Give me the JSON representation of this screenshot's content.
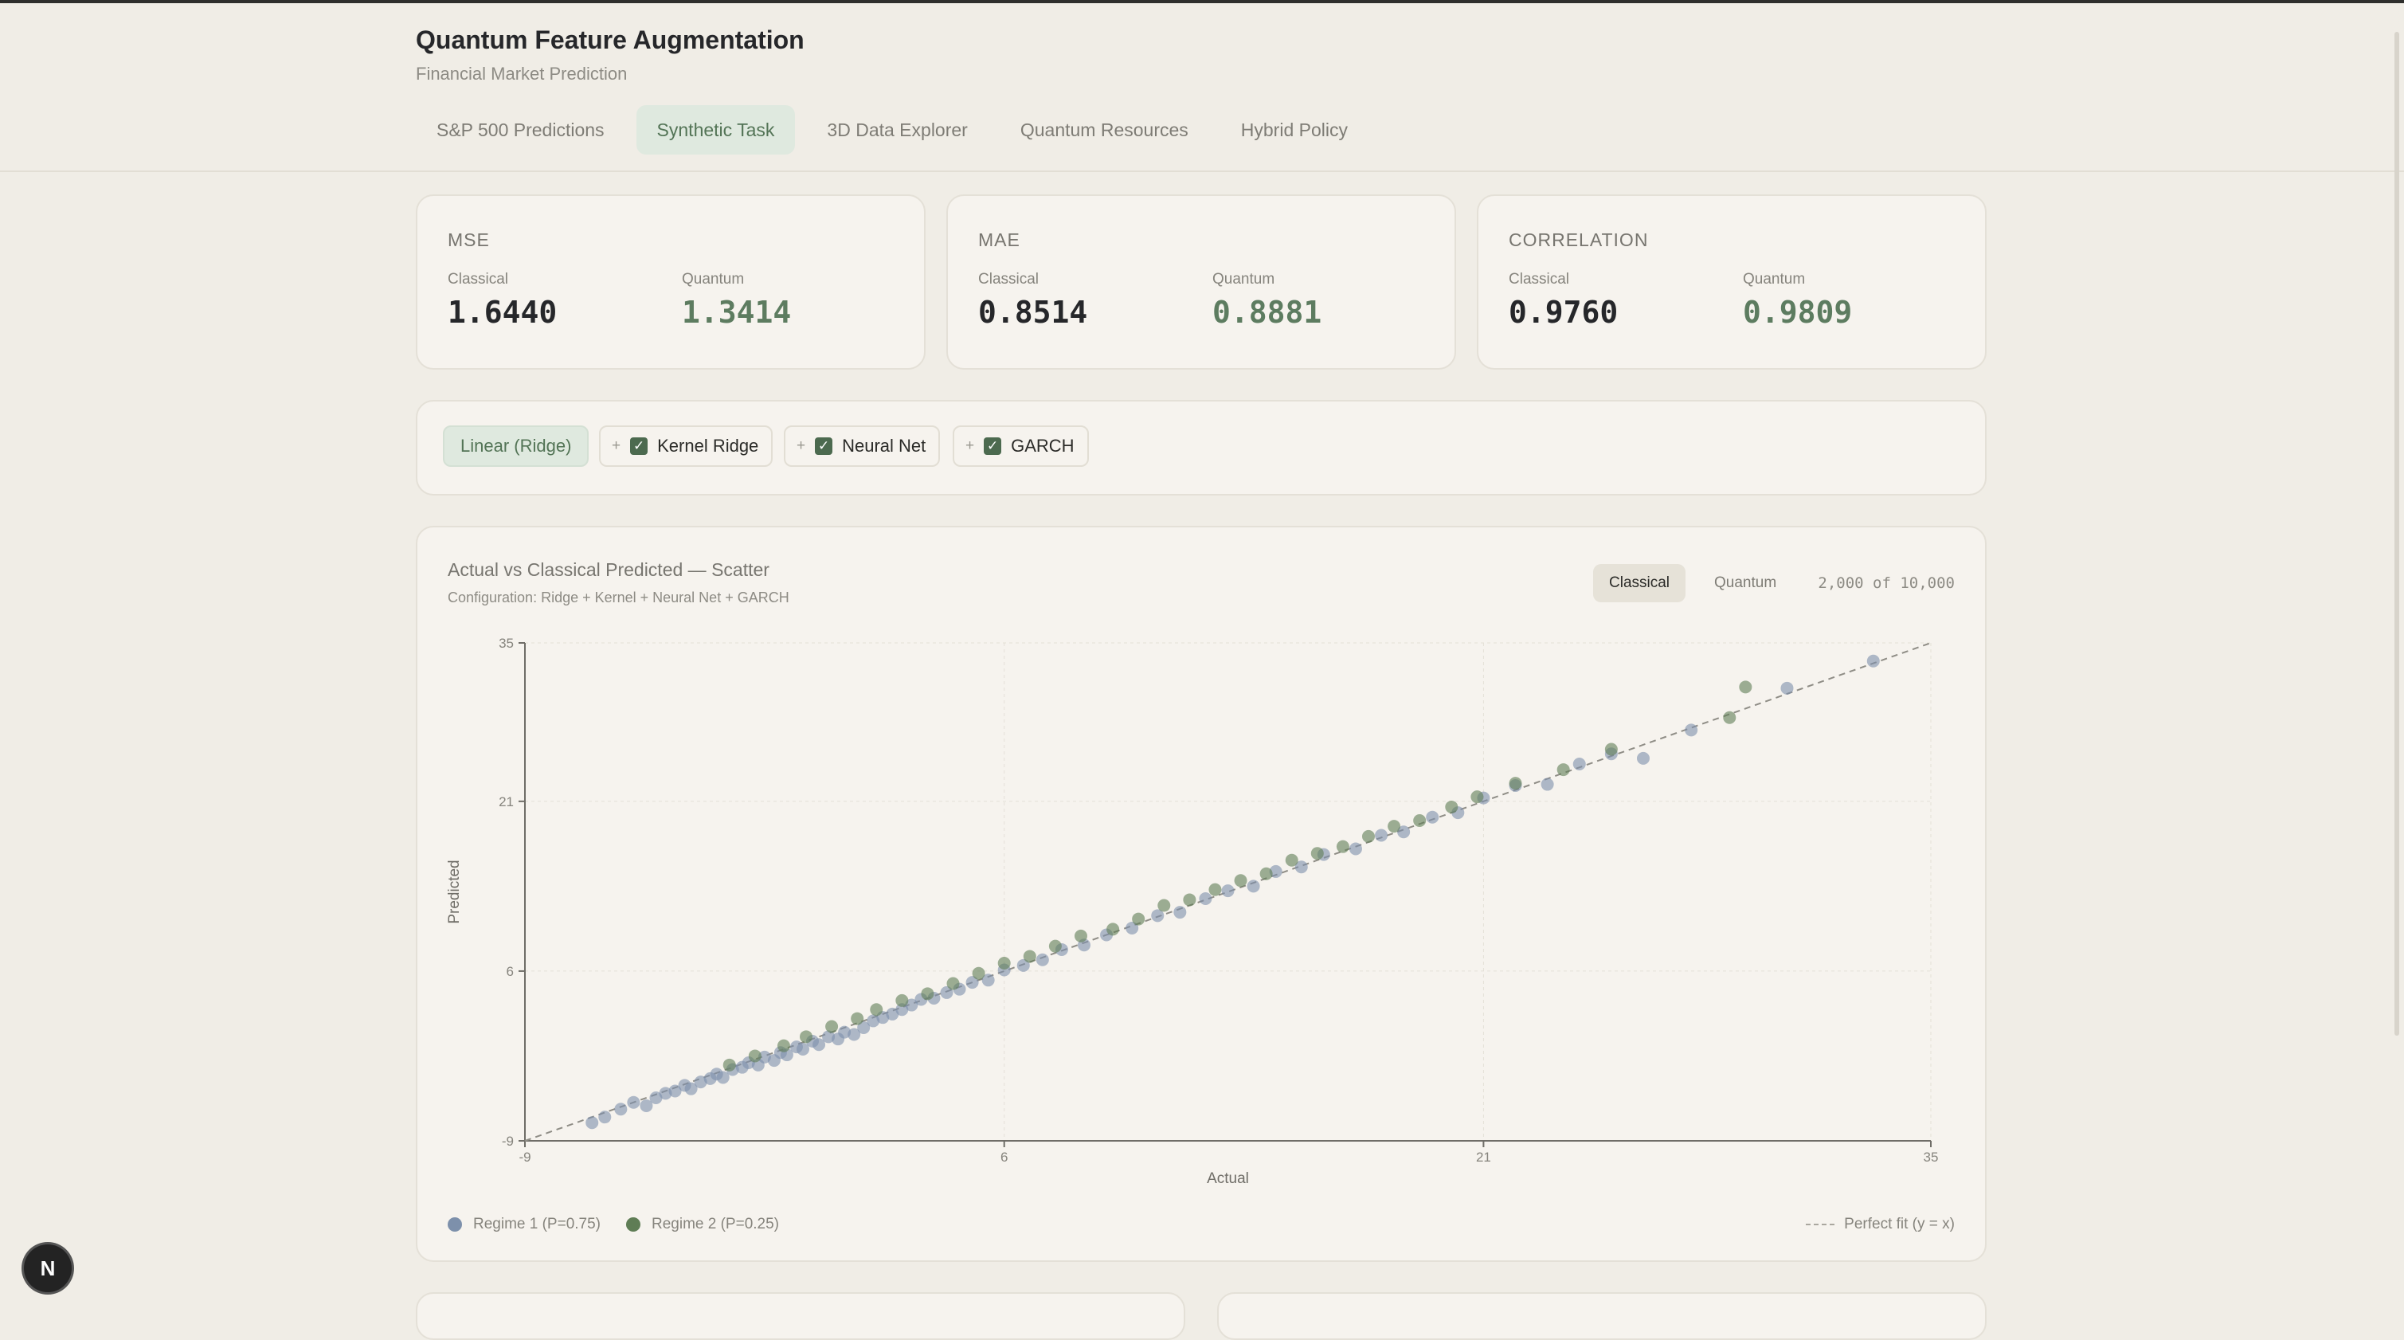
{
  "app": {
    "title": "Quantum Feature Augmentation",
    "subtitle": "Financial Market Prediction"
  },
  "tabs": [
    {
      "label": "S&P 500 Predictions",
      "active": false
    },
    {
      "label": "Synthetic Task",
      "active": true
    },
    {
      "label": "3D Data Explorer",
      "active": false
    },
    {
      "label": "Quantum Resources",
      "active": false
    },
    {
      "label": "Hybrid Policy",
      "active": false
    }
  ],
  "metrics": [
    {
      "name": "MSE",
      "classical_label": "Classical",
      "classical": "1.6440",
      "quantum_label": "Quantum",
      "quantum": "1.3414"
    },
    {
      "name": "MAE",
      "classical_label": "Classical",
      "classical": "0.8514",
      "quantum_label": "Quantum",
      "quantum": "0.8881"
    },
    {
      "name": "CORRELATION",
      "classical_label": "Classical",
      "classical": "0.9760",
      "quantum_label": "Quantum",
      "quantum": "0.9809"
    }
  ],
  "models": {
    "base": "Linear (Ridge)",
    "addons": [
      {
        "plus": "+",
        "name": "Kernel Ridge",
        "checked": true
      },
      {
        "plus": "+",
        "name": "Neural Net",
        "checked": true
      },
      {
        "plus": "+",
        "name": "GARCH",
        "checked": true
      }
    ]
  },
  "chart": {
    "title": "Actual vs Classical Predicted — Scatter",
    "config": "Configuration: Ridge + Kernel + Neural Net + GARCH",
    "view_classical": "Classical",
    "view_quantum": "Quantum",
    "sample_count": "2,000 of 10,000",
    "legend_r1": "Regime 1 (P=0.75)",
    "legend_r2": "Regime 2 (P=0.25)",
    "legend_fit": "Perfect fit (y = x)",
    "colors": {
      "regime1": "#7d90ab",
      "regime2": "#5f7d55",
      "fit": "#8f8d86"
    }
  },
  "chart_data": {
    "type": "scatter",
    "title": "",
    "xlabel": "Actual",
    "ylabel": "Predicted",
    "xlim": [
      -9,
      35
    ],
    "ylim": [
      -9,
      35
    ],
    "xticks": [
      "-9",
      "6",
      "21",
      "35"
    ],
    "yticks": [
      "-9",
      "6",
      "21",
      "35"
    ],
    "grid": true,
    "legend_position": "bottom",
    "series": [
      {
        "name": "Regime 1 (P=0.75)",
        "points": [
          [
            -6.9,
            -7.4
          ],
          [
            -6.5,
            -6.9
          ],
          [
            -6.0,
            -6.2
          ],
          [
            -5.6,
            -5.6
          ],
          [
            -5.2,
            -5.9
          ],
          [
            -4.9,
            -5.2
          ],
          [
            -4.6,
            -4.8
          ],
          [
            -4.3,
            -4.6
          ],
          [
            -4.0,
            -4.1
          ],
          [
            -3.8,
            -4.4
          ],
          [
            -3.5,
            -3.8
          ],
          [
            -3.2,
            -3.5
          ],
          [
            -3.0,
            -3.1
          ],
          [
            -2.8,
            -3.4
          ],
          [
            -2.5,
            -2.7
          ],
          [
            -2.2,
            -2.5
          ],
          [
            -2.0,
            -2.1
          ],
          [
            -1.7,
            -2.3
          ],
          [
            -1.5,
            -1.6
          ],
          [
            -1.2,
            -1.9
          ],
          [
            -1.0,
            -1.2
          ],
          [
            -0.8,
            -1.4
          ],
          [
            -0.5,
            -0.7
          ],
          [
            -0.3,
            -0.9
          ],
          [
            0.0,
            -0.2
          ],
          [
            0.2,
            -0.5
          ],
          [
            0.5,
            0.2
          ],
          [
            0.8,
            0.0
          ],
          [
            1.0,
            0.6
          ],
          [
            1.3,
            0.4
          ],
          [
            1.6,
            1.0
          ],
          [
            1.9,
            1.6
          ],
          [
            2.2,
            1.9
          ],
          [
            2.5,
            2.2
          ],
          [
            2.8,
            2.6
          ],
          [
            3.1,
            3.0
          ],
          [
            3.4,
            3.5
          ],
          [
            3.8,
            3.6
          ],
          [
            4.2,
            4.1
          ],
          [
            4.6,
            4.4
          ],
          [
            5.0,
            5.0
          ],
          [
            5.5,
            5.2
          ],
          [
            6.0,
            6.1
          ],
          [
            6.6,
            6.5
          ],
          [
            7.2,
            7.0
          ],
          [
            7.8,
            7.9
          ],
          [
            8.5,
            8.3
          ],
          [
            9.2,
            9.2
          ],
          [
            10.0,
            9.8
          ],
          [
            10.8,
            10.9
          ],
          [
            11.5,
            11.2
          ],
          [
            12.3,
            12.4
          ],
          [
            13.0,
            13.1
          ],
          [
            13.8,
            13.5
          ],
          [
            14.5,
            14.8
          ],
          [
            15.3,
            15.2
          ],
          [
            16.0,
            16.3
          ],
          [
            17.0,
            16.8
          ],
          [
            17.8,
            18.0
          ],
          [
            18.5,
            18.3
          ],
          [
            19.4,
            19.6
          ],
          [
            20.2,
            20.0
          ],
          [
            21.0,
            21.3
          ],
          [
            22.0,
            22.4
          ],
          [
            23.0,
            22.5
          ],
          [
            24.0,
            24.3
          ],
          [
            25.0,
            25.2
          ],
          [
            26.0,
            24.8
          ],
          [
            27.5,
            27.3
          ],
          [
            30.5,
            31.0
          ],
          [
            33.2,
            33.4
          ]
        ]
      },
      {
        "name": "Regime 2 (P=0.25)",
        "points": [
          [
            -2.6,
            -2.3
          ],
          [
            -1.8,
            -1.5
          ],
          [
            -0.9,
            -0.6
          ],
          [
            -0.2,
            0.2
          ],
          [
            0.6,
            1.1
          ],
          [
            1.4,
            1.8
          ],
          [
            2.0,
            2.6
          ],
          [
            2.8,
            3.4
          ],
          [
            3.6,
            4.0
          ],
          [
            4.4,
            4.9
          ],
          [
            5.2,
            5.8
          ],
          [
            6.0,
            6.7
          ],
          [
            6.8,
            7.3
          ],
          [
            7.6,
            8.2
          ],
          [
            8.4,
            9.1
          ],
          [
            9.4,
            9.7
          ],
          [
            10.2,
            10.6
          ],
          [
            11.0,
            11.8
          ],
          [
            11.8,
            12.3
          ],
          [
            12.6,
            13.2
          ],
          [
            13.4,
            14.0
          ],
          [
            14.2,
            14.6
          ],
          [
            15.0,
            15.8
          ],
          [
            15.8,
            16.4
          ],
          [
            16.6,
            17.0
          ],
          [
            17.4,
            17.9
          ],
          [
            18.2,
            18.8
          ],
          [
            19.0,
            19.3
          ],
          [
            20.0,
            20.5
          ],
          [
            20.8,
            21.4
          ],
          [
            22.0,
            22.6
          ],
          [
            23.5,
            23.8
          ],
          [
            25.0,
            25.6
          ],
          [
            28.7,
            28.4
          ],
          [
            29.2,
            31.1
          ]
        ]
      }
    ]
  }
}
